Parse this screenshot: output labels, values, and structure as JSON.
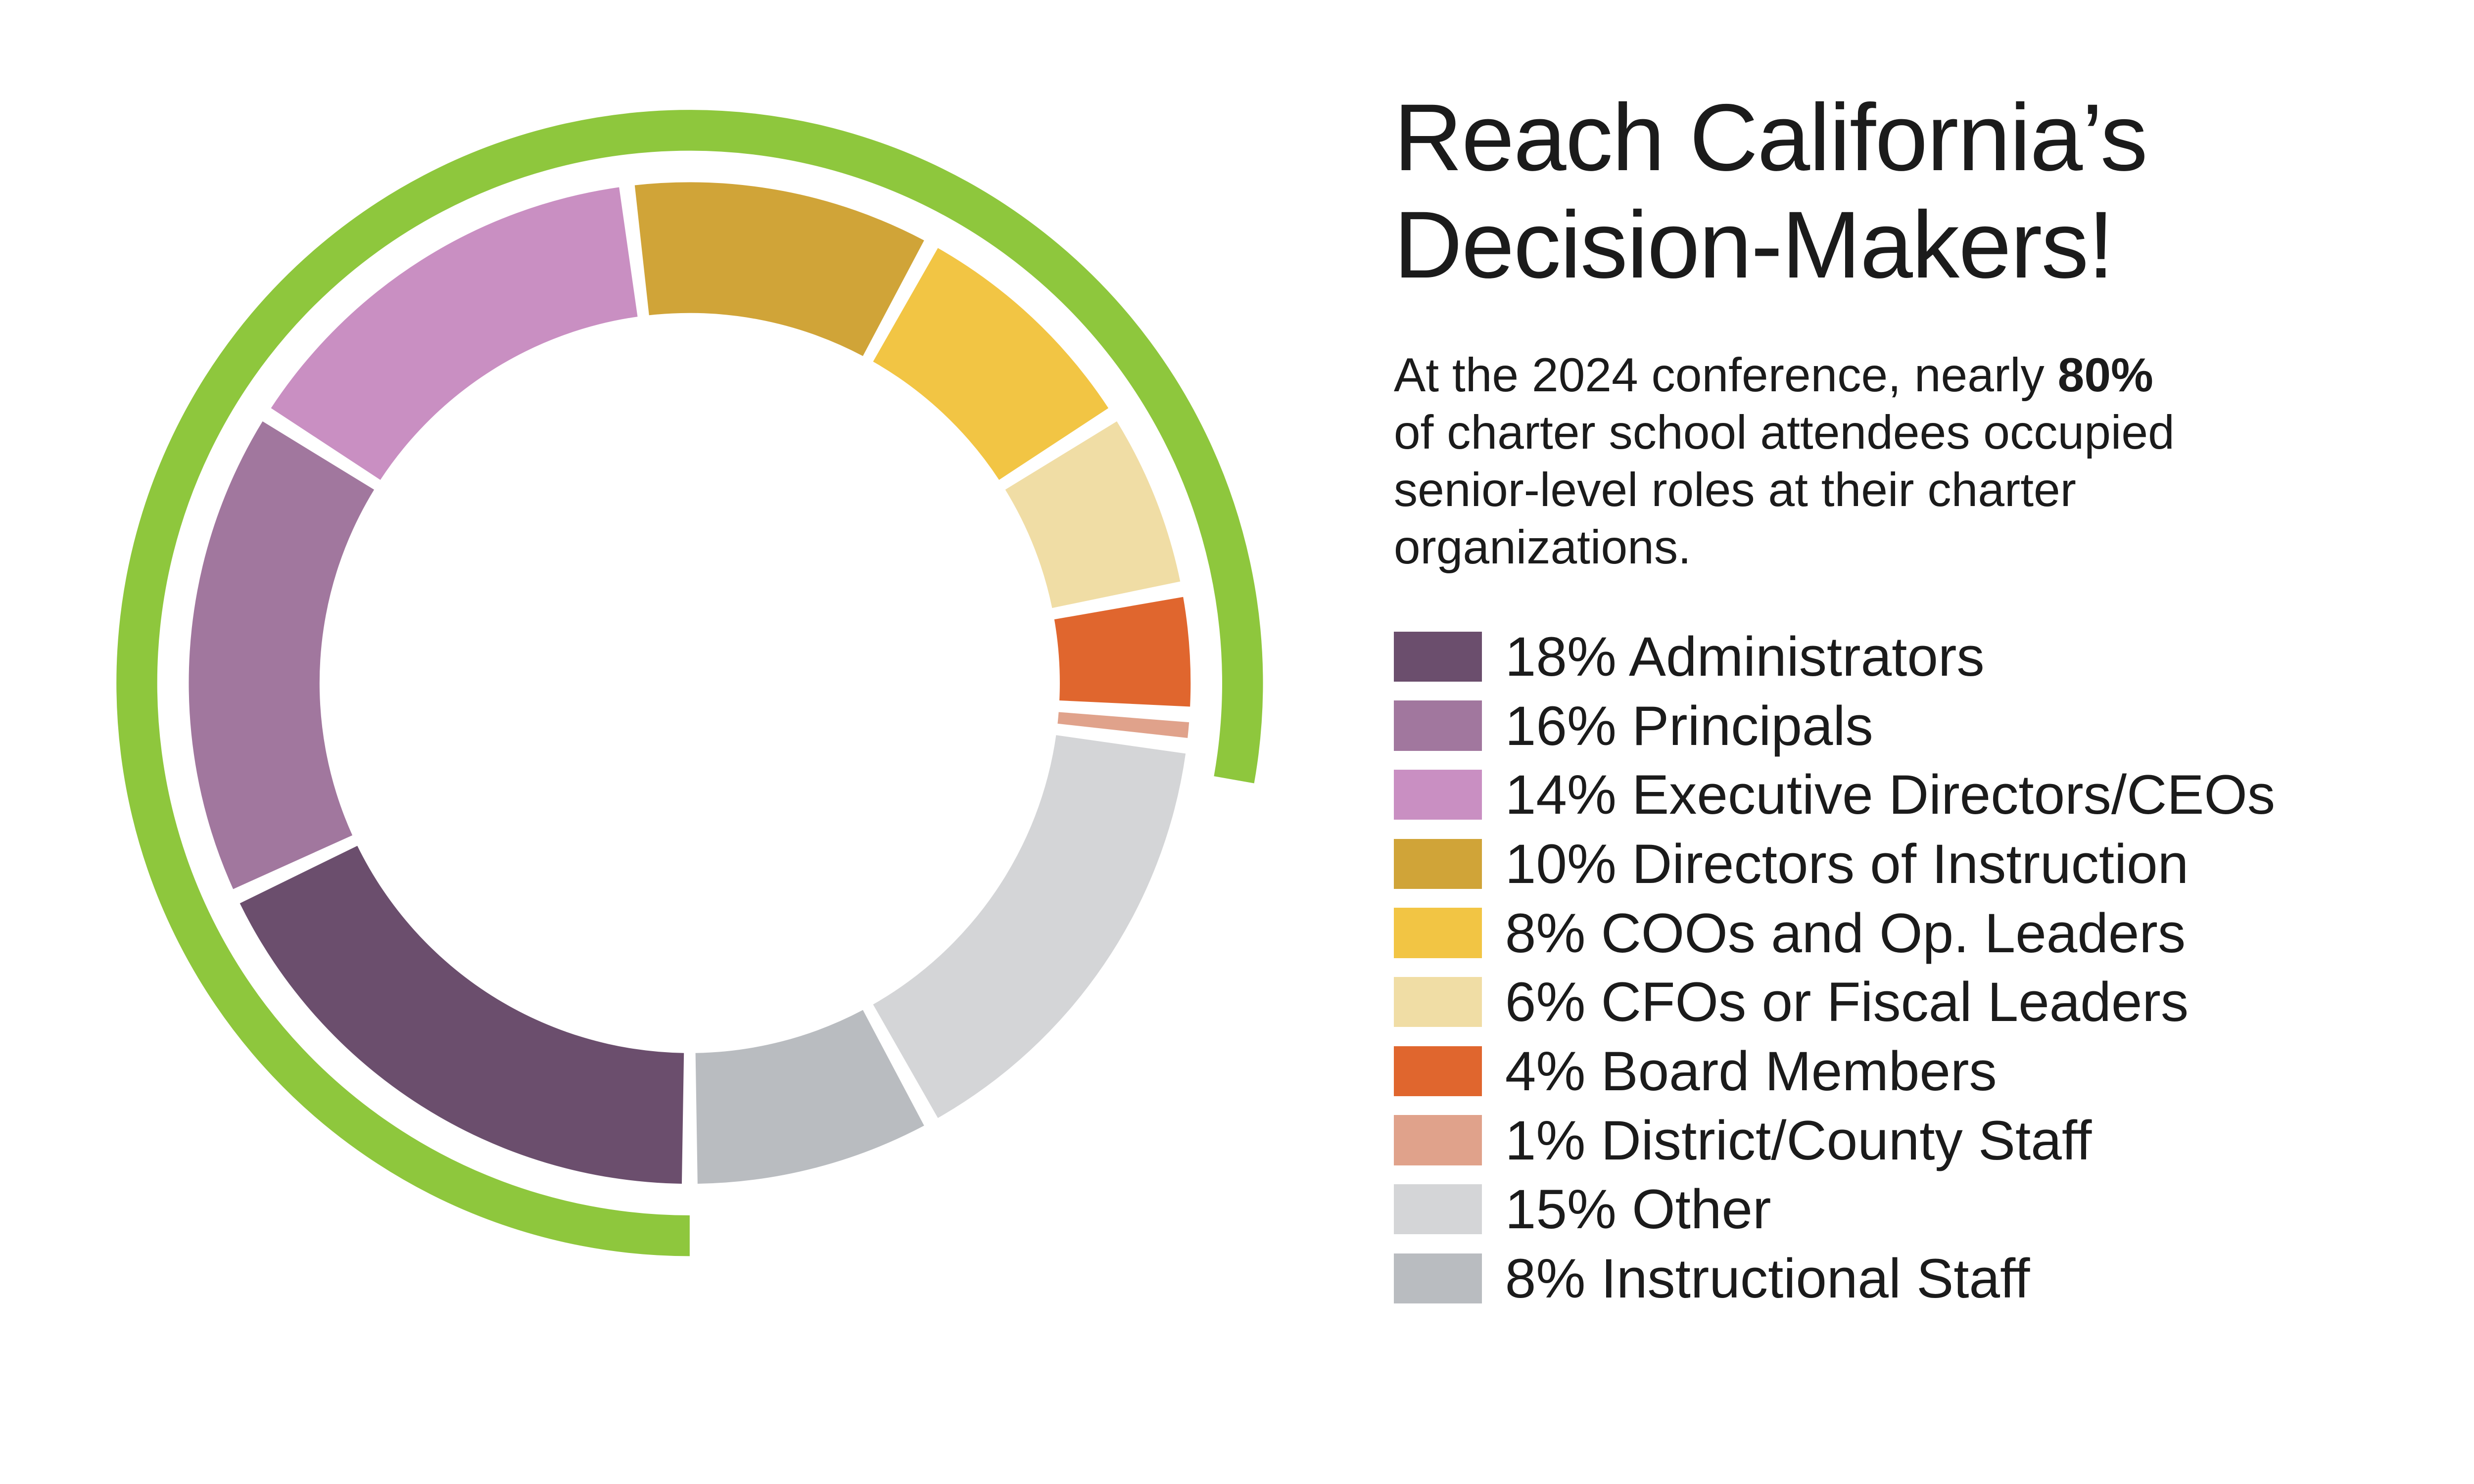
{
  "page": {
    "background": "#ffffff",
    "text_color": "#1b1b1b"
  },
  "title": {
    "text": "Reach California’s\nDecision-Makers!"
  },
  "intro": {
    "before_bold": "At the 2024 conference, nearly ",
    "bold": "80%",
    "after_bold": "\nof charter school attendees occupied\nsenior-level roles at their charter\norganizations."
  },
  "chart_data": {
    "type": "pie",
    "title": "Reach California’s Decision-Makers!",
    "donut": true,
    "start_angle_deg": 180,
    "direction": "clockwise",
    "slice_gap_deg": 1.8,
    "categories": [
      "Administrators",
      "Principals",
      "Executive Directors/CEOs",
      "Directors of Instruction",
      "COOs and Op. Leaders",
      "CFOs or Fiscal Leaders",
      "Board Members",
      "District/County Staff",
      "Other",
      "Instructional Staff"
    ],
    "values": [
      18,
      16,
      14,
      10,
      8,
      6,
      4,
      1,
      15,
      8
    ],
    "slices": [
      {
        "label": "Administrators",
        "value": 18,
        "color": "#6b4e6d"
      },
      {
        "label": "Principals",
        "value": 16,
        "color": "#a1779e"
      },
      {
        "label": "Executive Directors/CEOs",
        "value": 14,
        "color": "#c98fc2"
      },
      {
        "label": "Directors of Instruction",
        "value": 10,
        "color": "#d0a438"
      },
      {
        "label": "COOs and Op. Leaders",
        "value": 8,
        "color": "#f2c544"
      },
      {
        "label": "CFOs or Fiscal Leaders",
        "value": 6,
        "color": "#f0dda5"
      },
      {
        "label": "Board Members",
        "value": 4,
        "color": "#e0662e"
      },
      {
        "label": "District/County Staff",
        "value": 1,
        "color": "#e0a28b"
      },
      {
        "label": "Other",
        "value": 15,
        "color": "#d4d5d7"
      },
      {
        "label": "Instructional Staff",
        "value": 8,
        "color": "#b9bcc0"
      }
    ],
    "highlight_arc": {
      "span_percent": 77.8,
      "color": "#8ec73d"
    },
    "legend_position": "right"
  }
}
